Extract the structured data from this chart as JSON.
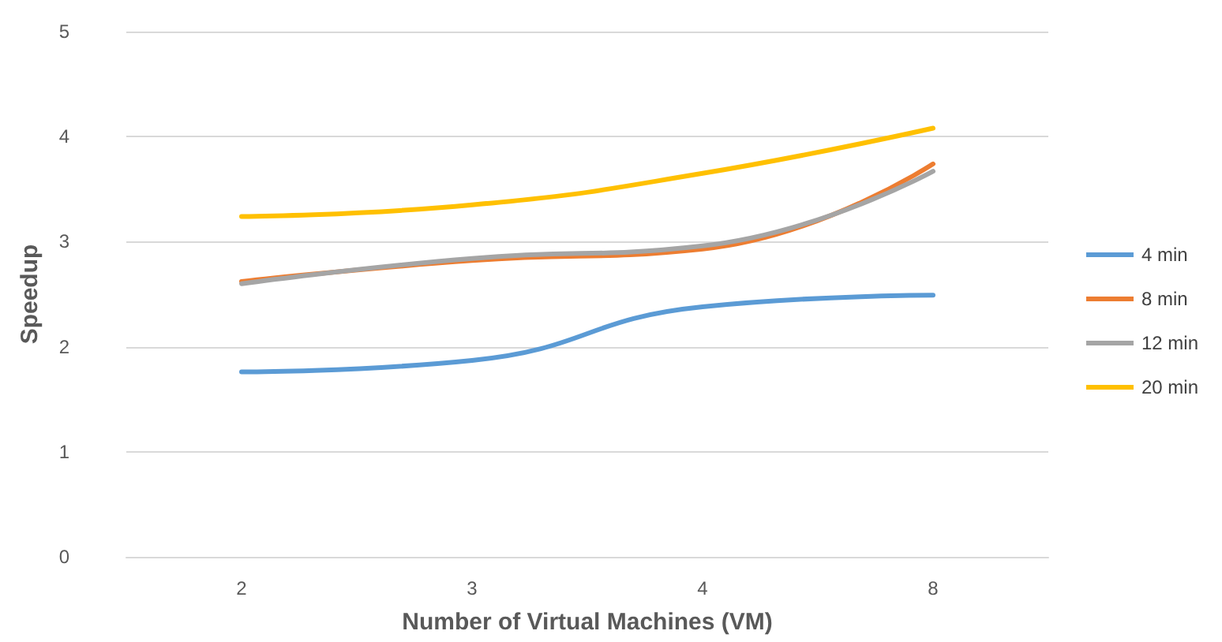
{
  "chart_data": {
    "type": "line",
    "xlabel": "Number of Virtual Machines (VM)",
    "ylabel": "Speedup",
    "categories": [
      "2",
      "3",
      "4",
      "8"
    ],
    "series": [
      {
        "name": "4 min",
        "color": "#5b9bd5",
        "values": [
          1.76,
          1.87,
          2.38,
          2.49
        ]
      },
      {
        "name": "8 min",
        "color": "#ed7d31",
        "values": [
          2.62,
          2.82,
          2.93,
          3.74
        ]
      },
      {
        "name": "12 min",
        "color": "#a5a5a5",
        "values": [
          2.6,
          2.84,
          2.96,
          3.67
        ]
      },
      {
        "name": "20 min",
        "color": "#ffc000",
        "values": [
          3.24,
          3.35,
          3.65,
          4.08
        ]
      }
    ],
    "ylim": [
      0,
      5
    ],
    "yticks": [
      0,
      1,
      2,
      3,
      4,
      5
    ],
    "grid": "y",
    "legend": "right",
    "marker": "none",
    "line_style": "solid"
  }
}
